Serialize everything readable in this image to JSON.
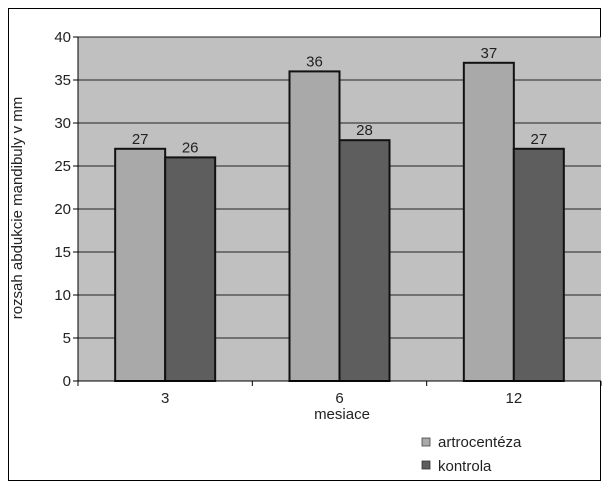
{
  "chart_data": {
    "type": "bar",
    "categories": [
      "3",
      "6",
      "12"
    ],
    "series": [
      {
        "name": "artrocentéza",
        "values": [
          27,
          36,
          37
        ],
        "color": "#a9a9a9"
      },
      {
        "name": "kontrola",
        "values": [
          26,
          28,
          27
        ],
        "color": "#5e5e5e"
      }
    ],
    "yticks": [
      "0",
      "5",
      "10",
      "15",
      "20",
      "25",
      "30",
      "35",
      "40"
    ],
    "ylim": [
      0,
      40
    ],
    "xlabel": "mesiace",
    "ylabel": "rozsah abdukcie mandibuly v mm",
    "grid": true,
    "legend_position": "bottom-right",
    "plot_background": "#c0c0c0"
  }
}
